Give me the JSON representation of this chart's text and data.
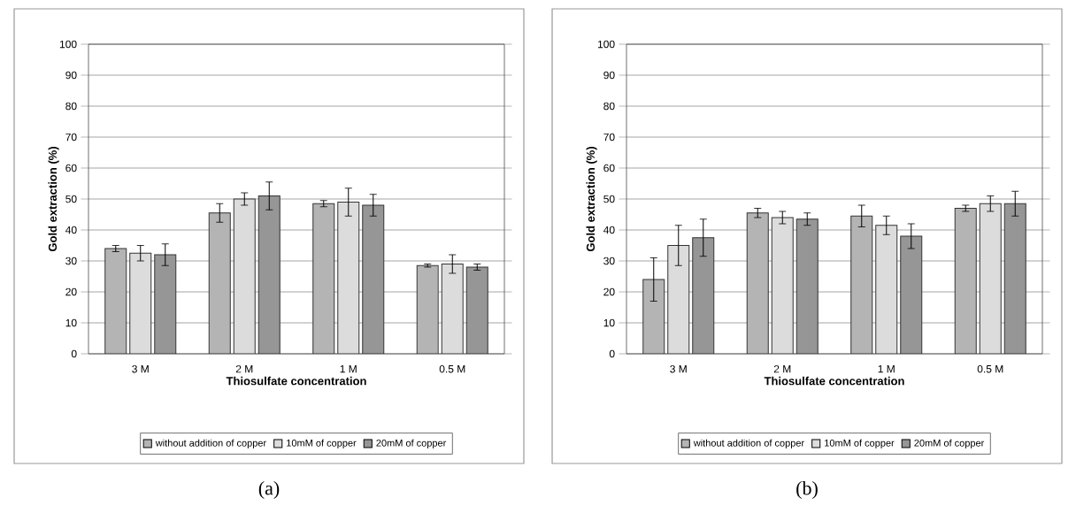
{
  "chart_data": [
    {
      "type": "bar",
      "categories": [
        "3 M",
        "2 M",
        "1 M",
        "0.5 M"
      ],
      "xlabel": "Thiosulfate concentration",
      "ylabel": "Gold extraction (%)",
      "ylim": [
        0,
        100
      ],
      "yticks": [
        0,
        10,
        20,
        30,
        40,
        50,
        60,
        70,
        80,
        90,
        100
      ],
      "grid": "y",
      "legend": "bottom",
      "annotations": [
        "(a)"
      ],
      "series": [
        {
          "name": "without addition of copper",
          "color": "#b4b4b4",
          "values": [
            34,
            45.5,
            48.5,
            28.5
          ],
          "errors": [
            1,
            3,
            1,
            0.5
          ]
        },
        {
          "name": "10mM of copper",
          "color": "#dcdcdc",
          "values": [
            32.5,
            50,
            49,
            29
          ],
          "errors": [
            2.5,
            2,
            4.5,
            3
          ]
        },
        {
          "name": "20mM of copper",
          "color": "#969696",
          "values": [
            32,
            51,
            48,
            28
          ],
          "errors": [
            3.5,
            4.5,
            3.5,
            1
          ]
        }
      ]
    },
    {
      "type": "bar",
      "categories": [
        "3 M",
        "2 M",
        "1 M",
        "0.5 M"
      ],
      "xlabel": "Thiosulfate concentration",
      "ylabel": "Gold extraction (%)",
      "ylim": [
        0,
        100
      ],
      "yticks": [
        0,
        10,
        20,
        30,
        40,
        50,
        60,
        70,
        80,
        90,
        100
      ],
      "grid": "y",
      "legend": "bottom",
      "annotations": [
        "(b)"
      ],
      "series": [
        {
          "name": "without addition of copper",
          "color": "#b4b4b4",
          "values": [
            24,
            45.5,
            44.5,
            47
          ],
          "errors": [
            7,
            1.5,
            3.5,
            1
          ]
        },
        {
          "name": "10mM of copper",
          "color": "#dcdcdc",
          "values": [
            35,
            44,
            41.5,
            48.5
          ],
          "errors": [
            6.5,
            2,
            3,
            2.5
          ]
        },
        {
          "name": "20mM of copper",
          "color": "#969696",
          "values": [
            37.5,
            43.5,
            38,
            48.5
          ],
          "errors": [
            6,
            2,
            4,
            4
          ]
        }
      ]
    }
  ]
}
